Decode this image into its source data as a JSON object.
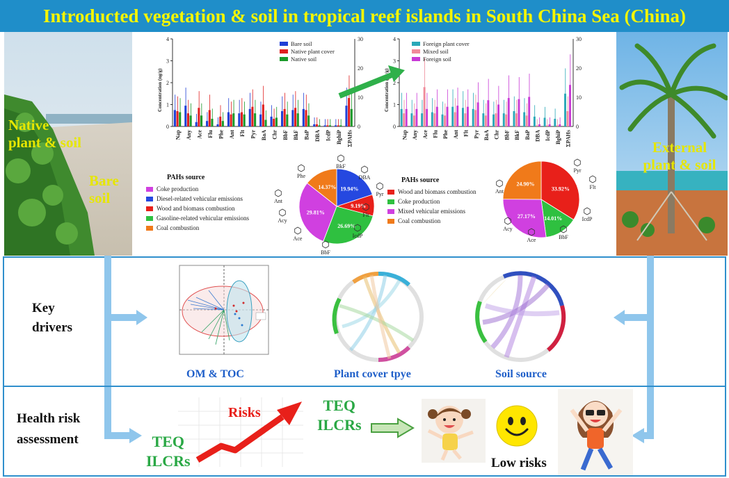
{
  "title": "Introducted vegetation & soil in tropical reef islands in South China Sea (China)",
  "left_photo": {
    "native_label": "Native plant & soil",
    "bare_label": "Bare soil"
  },
  "right_photo": {
    "external_label": "External plant & soil"
  },
  "colors": {
    "banner": "#1f8ec9",
    "title_text": "#f5f500",
    "frame": "#2f8fcc",
    "accent_green": "#2aa845",
    "risk_red": "#e8201a"
  },
  "chart_data": [
    {
      "type": "bar",
      "ylabel": "Concentration (ng/g)",
      "ylim": [
        0,
        4
      ],
      "y2lim": [
        0,
        30
      ],
      "yticks": [
        "0",
        "1",
        "2",
        "3",
        "4"
      ],
      "y2ticks": [
        "0",
        "10",
        "20",
        "30"
      ],
      "categories": [
        "Nap",
        "Any",
        "Ace",
        "Flu",
        "Phe",
        "Ant",
        "Flt",
        "Pyr",
        "BaA",
        "Chr",
        "BbF",
        "BkF",
        "BaP",
        "DBA",
        "IcdP",
        "BghiP",
        "ΣPAHs"
      ],
      "series": [
        {
          "name": "Bare soil",
          "color": "#1f3fd6",
          "values": [
            0.75,
            0.95,
            0.2,
            0.25,
            0.1,
            0.65,
            0.6,
            0.8,
            0.55,
            0.45,
            0.7,
            0.75,
            0.8,
            0.1,
            0.05,
            0.05,
            0.95
          ]
        },
        {
          "name": "Native plant cover",
          "color": "#e02020",
          "values": [
            0.7,
            0.6,
            0.85,
            0.75,
            0.45,
            0.55,
            0.65,
            0.9,
            1.0,
            0.35,
            0.8,
            0.85,
            0.75,
            0.1,
            0.05,
            0.05,
            1.3
          ]
        },
        {
          "name": "Native soil",
          "color": "#1a9a2a",
          "values": [
            0.65,
            0.5,
            0.5,
            0.35,
            0.25,
            0.6,
            0.55,
            0.6,
            0.3,
            0.4,
            0.55,
            0.6,
            0.5,
            0.05,
            0.05,
            0.05,
            0.8
          ]
        }
      ]
    },
    {
      "type": "bar",
      "ylabel": "Concentration (ng/g)",
      "ylim": [
        0,
        4
      ],
      "y2lim": [
        0,
        30
      ],
      "yticks": [
        "0",
        "1",
        "2",
        "3",
        "4"
      ],
      "y2ticks": [
        "0",
        "10",
        "20",
        "30"
      ],
      "categories": [
        "Nap",
        "Any",
        "Ace",
        "Flu",
        "Phe",
        "Ant",
        "Flt",
        "Pyr",
        "BaA",
        "Chr",
        "BbF",
        "BkF",
        "BaP",
        "DBA",
        "IcdP",
        "BghiP",
        "ΣPAHs"
      ],
      "series": [
        {
          "name": "Foreign plant cover",
          "color": "#2aa8b8",
          "values": [
            0.8,
            0.6,
            0.6,
            0.65,
            0.55,
            0.9,
            0.85,
            0.8,
            0.6,
            0.55,
            0.6,
            0.7,
            0.65,
            0.45,
            0.4,
            0.35,
            1.5
          ]
        },
        {
          "name": "Mixed soil",
          "color": "#f08a9a",
          "values": [
            0.6,
            0.5,
            1.8,
            0.6,
            0.5,
            0.65,
            0.6,
            0.75,
            0.5,
            0.6,
            0.55,
            0.6,
            0.5,
            0.05,
            0.05,
            0.05,
            0.7
          ]
        },
        {
          "name": "Foreign soil",
          "color": "#c83ad6",
          "values": [
            0.8,
            0.8,
            0.8,
            0.9,
            0.9,
            0.95,
            0.9,
            1.1,
            1.2,
            1.0,
            1.3,
            1.25,
            1.35,
            0.1,
            0.1,
            0.1,
            1.9
          ]
        }
      ]
    },
    {
      "type": "pie",
      "title": "PAHs source",
      "legend": [
        "Coke production",
        "Diesel-related vehicular emissions",
        "Wood and biomass combustion",
        "Gasoline-related vehicular emissions",
        "Coal combustion"
      ],
      "slices": [
        {
          "label": "19.94%",
          "value": 19.94,
          "color": "#2548e0"
        },
        {
          "label": "9.19%",
          "value": 9.19,
          "color": "#e8201a"
        },
        {
          "label": "26.69%",
          "value": 26.69,
          "color": "#2fc040"
        },
        {
          "label": "29.81%",
          "value": 29.81,
          "color": "#d040e0"
        },
        {
          "label": "14.37%",
          "value": 14.37,
          "color": "#f07a1a"
        }
      ],
      "legend_colors": [
        "#d040e0",
        "#2548e0",
        "#e8201a",
        "#2fc040",
        "#f07a1a"
      ],
      "molecules": [
        "Phe",
        "BkF",
        "DBA",
        "Pyr",
        "Flt",
        "IcdP",
        "BbF",
        "Ace",
        "Acy",
        "Ant"
      ]
    },
    {
      "type": "pie",
      "title": "PAHs source",
      "legend": [
        "Wood and biomass combustion",
        "Coke production",
        "Mixed vehicular emissions",
        "Coal combustion"
      ],
      "slices": [
        {
          "label": "33.92%",
          "value": 33.92,
          "color": "#e8201a"
        },
        {
          "label": "14.01%",
          "value": 14.01,
          "color": "#2fc040"
        },
        {
          "label": "27.17%",
          "value": 27.17,
          "color": "#d040e0"
        },
        {
          "label": "24.90%",
          "value": 24.9,
          "color": "#f07a1a"
        }
      ],
      "legend_colors": [
        "#e8201a",
        "#2fc040",
        "#d040e0",
        "#f07a1a"
      ],
      "molecules": [
        "Pyr",
        "Flt",
        "IcdP",
        "BbF",
        "Ace",
        "Acy",
        "Ant"
      ]
    }
  ],
  "drivers": {
    "row_label": "Key drivers",
    "panels": [
      "OM & TOC",
      "Plant cover tpye",
      "Soil source"
    ]
  },
  "risk": {
    "row_label": "Health risk assessment",
    "metrics_left": [
      "TEQ",
      "ILCRs"
    ],
    "risks_label": "Risks",
    "metrics_right": [
      "TEQ",
      "ILCRs"
    ],
    "outcome": "Low risks"
  }
}
